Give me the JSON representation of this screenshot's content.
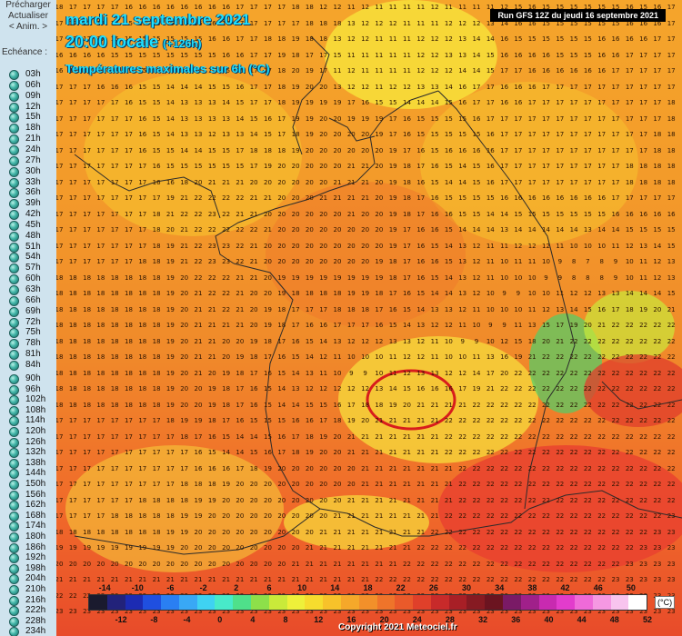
{
  "sidebar": {
    "preload": "Précharger",
    "refresh": "Actualiser",
    "anim": "< Anim. >",
    "echeance_label": "Echéance :",
    "steps_a": [
      "03h",
      "06h",
      "09h",
      "12h",
      "15h",
      "18h",
      "21h",
      "24h",
      "27h",
      "30h",
      "33h",
      "36h",
      "39h",
      "42h",
      "45h",
      "48h",
      "51h",
      "54h",
      "57h",
      "60h",
      "63h",
      "66h",
      "69h",
      "72h",
      "75h",
      "78h",
      "81h",
      "84h"
    ],
    "steps_b": [
      "90h",
      "96h",
      "102h",
      "108h",
      "114h",
      "120h",
      "126h",
      "132h",
      "138h",
      "144h",
      "150h",
      "156h",
      "162h",
      "168h",
      "174h",
      "180h",
      "186h",
      "192h",
      "198h",
      "204h",
      "210h",
      "216h",
      "222h",
      "228h",
      "234h"
    ]
  },
  "map": {
    "title_date": "mardi 21 septembre 2021",
    "title_time": "20:00 locale",
    "title_offset": "(+126h)",
    "subtitle": "Températures maximales sur 6h (°C)",
    "run": "Run GFS 12Z du jeudi 16 septembre 2021",
    "copyright": "Copyright 2021 Meteociel.fr",
    "unit": "(°C)",
    "highlight_color": "#d81c1c",
    "legend_top": [
      "-14",
      "-10",
      "-6",
      "-2",
      "2",
      "6",
      "10",
      "14",
      "18",
      "22",
      "26",
      "30",
      "34",
      "38",
      "42",
      "46",
      "50"
    ],
    "legend_bottom": [
      "-12",
      "-8",
      "-4",
      "0",
      "4",
      "8",
      "12",
      "16",
      "20",
      "24",
      "28",
      "32",
      "36",
      "40",
      "44",
      "48",
      "52"
    ],
    "legend_colors": [
      "#1a1a2e",
      "#22227a",
      "#1c2bb3",
      "#1f4fe0",
      "#2a7ff2",
      "#39a8f5",
      "#3fd2f2",
      "#48eac9",
      "#4fe08a",
      "#8de04a",
      "#c9ea3a",
      "#eef03a",
      "#f6dc2e",
      "#f7c22a",
      "#f5a82a",
      "#f2902a",
      "#ef742a",
      "#ea5a2a",
      "#e0402a",
      "#c82a2a",
      "#a81f26",
      "#861a22",
      "#6b1420",
      "#7a1a66",
      "#a0208a",
      "#c82ab0",
      "#e23ccc",
      "#ef6ad8",
      "#f598e2",
      "#f8c4ee",
      "#ffffff"
    ],
    "rows": [
      "18 17 17 17 17 16 16 16 16 16 16 16 16 17 17 17 17 18 18 12 12 11 12 11 11 11 11 12 11 11 11 11 12 15 16 15 15 15 15 15 15 16 15 16 17",
      "17 17 17 17 17 15 15 15 15 16 16 16 16 17 17 17 17 17 18 18 18 13 12 12 12 11 11 11 12 12 12 13 14 16 16 15 15 15 15 15 15 16 16 16 17",
      "17 17 17 17 15 15 15 15 15 15 15 16 16 17 17 18 18 19 18 18 13 12 12 11 11 11 12 12 12 13 14 14 16 15 15 15 15 15 15 16 16 16 16 17 17",
      "16 16 16 16 15 15 15 15 15 15 15 15 16 16 17 17 19 18 17 17 15 11 11 11 11 11 12 12 13 13 14 15 16 16 16 16 15 15 15 16 16 17 17 17 17",
      "16 16 16 16 16 15 15 15 14 14 14 15 15 16 17 17 18 20 19 17 11 12 11 11 11 11 12 12 12 14 14 15 17 17 16 16 16 16 16 16 17 17 17 17 17",
      "17 17 17 16 16 16 15 15 14 14 14 15 15 16 17 17 18 19 20 20 13 12 12 11 12 12 13 13 14 16 17 17 16 16 16 17 17 17 17 17 17 17 17 17 17",
      "17 17 17 17 17 16 15 15 14 13 13 13 14 15 17 17 18 19 19 19 19 17 16 15 15 14 14 14 15 16 17 17 16 16 17 17 17 17 17 17 17 17 17 17 18",
      "17 17 17 17 17 17 16 15 14 13 13 13 13 14 15 16 17 19 19 20 20 19 19 19 17 16 15 15 15 15 16 17 17 17 17 17 17 17 17 17 17 17 17 17 18",
      "17 17 17 17 17 17 16 15 14 13 13 12 13 13 14 15 17 18 19 20 20 20 20 19 17 16 15 15 15 15 15 16 17 17 17 17 17 17 17 17 17 17 17 18 18",
      "17 17 17 17 17 17 16 15 15 14 14 15 15 17 18 18 18 19 20 20 20 20 20 20 19 17 16 15 16 16 16 16 17 17 17 17 17 17 17 17 17 17 17 18 18",
      "17 17 17 17 17 17 17 16 15 15 15 15 15 15 17 19 20 20 20 20 20 21 21 20 19 18 17 16 15 14 15 16 17 17 17 17 17 17 17 17 17 18 18 18 18",
      "17 17 17 17 17 17 17 16 16 18 20 21 21 21 20 20 20 20 20 20 21 21 21 20 19 18 16 15 14 14 15 16 17 17 17 17 17 17 17 17 17 18 18 18 18",
      "17 17 17 17 17 17 17 17 19 21 22 22 22 22 21 21 20 20 20 21 21 21 21 20 19 18 17 16 15 15 15 15 16 16 16 16 16 16 16 16 17 17 17 17 17",
      "17 17 17 17 17 17 17 18 21 22 22 23 22 21 21 20 20 20 20 20 20 21 20 20 19 18 17 16 16 15 15 14 14 15 15 15 15 15 15 15 16 16 16 16 16",
      "17 17 17 17 17 17 17 18 20 21 22 22 22 22 22 21 20 20 20 20 20 20 20 20 19 17 16 16 15 14 14 14 13 14 14 14 14 14 13 14 14 15 15 15 15",
      "17 17 17 17 17 17 17 18 19 21 22 23 23 22 21 20 20 20 20 20 20 20 20 20 19 17 16 15 14 13 12 11 11 12 12 12 11 10 10 10 11 12 13 14 15",
      "17 17 17 17 17 17 18 18 19 21 22 23 23 22 21 20 20 20 20 20 20 20 20 19 18 17 16 16 15 13 12 11 10 11 11 10 9 8 7 8 9 10 11 12 13",
      "18 18 18 18 18 18 18 18 19 20 22 22 22 21 21 20 19 19 19 19 19 19 19 19 18 17 16 15 14 13 12 11 10 10 10 9 9 8 8 8 9 10 11 12 13",
      "18 18 18 18 18 18 18 18 19 20 21 22 22 21 20 20 19 18 18 18 18 19 19 18 17 16 15 14 14 13 12 10 9 9 10 10 11 12 12 13 13 14 14 14 15",
      "18 18 18 18 18 18 18 18 19 20 21 21 22 21 20 19 18 17 17 17 18 18 18 17 16 15 14 13 13 12 11 10 10 10 11 12 13 14 15 16 17 18 19 20 21",
      "18 18 18 18 18 18 18 18 19 20 21 21 21 21 20 19 18 17 16 16 17 17 17 16 15 14 13 12 12 11 10 9 9 11 13 15 17 19 20 21 22 22 22 22 22",
      "18 18 18 18 18 18 18 18 19 20 21 21 20 20 19 18 17 16 15 14 13 12 12 12 13 13 12 11 10 9 9 10 12 15 18 20 21 22 22 22 22 22 22 22 22",
      "18 18 18 18 18 18 18 18 19 20 21 21 20 19 18 17 16 15 14 12 11 10 10 10 11 12 12 11 10 10 11 13 16 19 21 22 22 22 22 22 22 22 22 22 22",
      "18 18 18 18 18 18 18 18 19 20 21 20 19 18 17 16 15 14 13 11 10 9 9 10 11 12 13 13 12 12 14 17 20 22 22 22 22 22 22 22 22 22 22 22 22",
      "18 18 18 18 18 18 18 18 19 20 20 19 18 17 16 15 14 13 12 12 12 12 12 13 14 15 16 16 16 17 19 21 22 22 22 22 22 22 22 22 22 22 22 22 22",
      "18 18 18 18 18 18 18 18 19 20 20 19 18 17 16 15 14 14 15 15 16 17 18 18 19 20 21 21 21 21 22 22 22 22 22 22 22 22 22 22 22 22 22 22 22",
      "17 17 17 17 17 17 17 17 18 19 19 18 17 16 15 15 15 16 16 17 18 19 20 21 21 21 21 21 22 22 22 22 22 22 22 22 22 22 22 22 22 22 22 22 22",
      "17 17 17 17 17 17 17 17 17 18 17 16 15 14 14 15 16 17 18 19 20 21 21 21 21 21 21 21 22 22 22 22 22 22 22 22 22 22 22 22 22 22 22 22 22",
      "17 17 17 17 17 17 17 17 17 17 16 15 14 14 15 16 17 18 19 20 20 21 21 21 21 21 21 21 22 22 22 22 22 22 22 22 22 22 22 22 22 22 22 22 22",
      "17 17 17 17 17 17 17 17 17 17 16 16 16 17 18 19 20 20 20 20 20 20 21 21 21 21 21 21 21 22 22 22 22 22 22 22 22 22 22 22 22 22 22 22 22",
      "17 17 17 17 17 17 17 17 17 18 18 18 19 20 20 20 20 20 20 20 20 20 21 21 21 21 21 21 21 22 22 22 22 22 22 22 22 22 22 22 22 22 22 22 22",
      "17 17 17 17 17 17 18 18 18 18 19 19 20 20 20 20 20 20 20 20 20 21 21 21 21 21 21 21 21 22 22 22 22 22 22 22 22 22 22 22 22 22 22 22 22",
      "17 17 17 17 18 18 18 18 18 19 19 20 20 20 20 20 20 20 20 20 21 21 21 21 21 21 21 21 22 22 22 22 22 22 22 22 22 22 22 22 22 22 22 22 23",
      "18 18 18 18 18 18 18 18 19 19 20 20 20 20 20 20 20 20 20 21 21 21 21 21 21 21 21 22 22 22 22 22 22 22 22 22 22 22 22 22 22 22 22 23 23",
      "19 19 19 19 19 19 19 19 19 20 20 20 20 20 20 20 20 20 21 21 21 21 21 21 21 21 22 22 22 22 22 22 22 22 22 22 22 22 22 22 22 22 23 23 23",
      "20 20 20 20 20 20 20 20 20 20 20 20 20 20 20 20 20 21 21 21 21 21 21 21 21 22 22 22 22 22 22 22 22 22 22 22 22 22 22 22 22 23 23 23 23",
      "21 21 21 21 21 21 21 21 21 21 21 21 21 21 21 21 21 21 21 21 21 21 21 22 22 22 22 22 22 22 22 22 22 22 22 22 22 22 22 22 23 23 23 23 23",
      "22 22 22 22 22 22 22 22 22 22 22 22 22 22 22 22 22 22 22 22 22 22 22 22 22 22 22 22 22 22 22 22 22 22 22 22 22 22 22 23 23 23 23 23 23",
      "23 23 23 23 23 23 23 23 23 23 23 23 23 23 23 23 23 23 23 23 23 23 23 23 23 23 23 23 23 23 23 23 23 23 23 23 23 23 23 23 23 23 23 23 23"
    ]
  }
}
